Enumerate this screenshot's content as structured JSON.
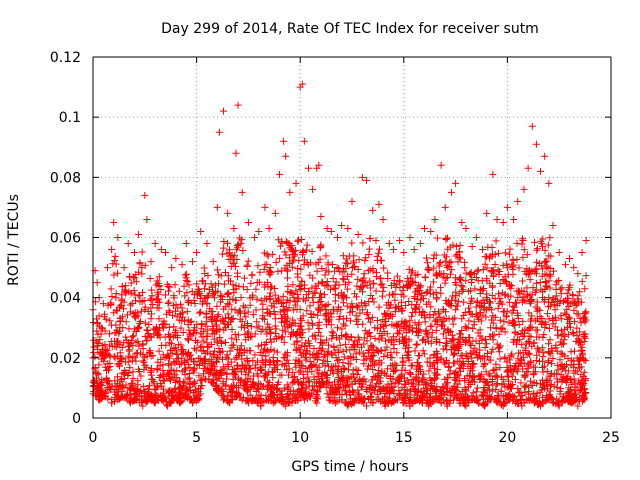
{
  "chart_data": {
    "type": "scatter",
    "title": "Day 299 of 2014, Rate Of TEC Index for receiver sutm",
    "xlabel": "GPS time / hours",
    "ylabel": "ROTI / TECUs",
    "xlim": [
      0,
      25
    ],
    "ylim": [
      0,
      0.12
    ],
    "x_ticks": [
      0,
      5,
      10,
      15,
      20,
      25
    ],
    "x_tick_labels": [
      "0",
      "5",
      "10",
      "15",
      "20",
      "25"
    ],
    "y_ticks": [
      0,
      0.02,
      0.04,
      0.06,
      0.08,
      0.1,
      0.12
    ],
    "y_tick_labels": [
      "0",
      "0.02",
      "0.04",
      "0.06",
      "0.08",
      "0.1",
      "0.12"
    ],
    "grid": true,
    "marker": "plus",
    "color": "#ff0000",
    "series": [
      {
        "x": [
          0.0,
          0.1,
          0.2,
          0.3,
          0.5,
          0.7,
          0.9,
          1.0,
          1.2,
          1.5,
          1.7,
          2.0,
          2.2,
          2.5,
          2.6,
          2.8,
          3.0,
          3.3,
          3.5,
          3.8,
          4.0,
          4.3,
          4.5,
          4.8,
          5.0,
          5.2,
          5.5,
          5.8,
          6.0,
          6.1,
          6.3,
          6.5,
          6.8,
          6.9,
          7.0,
          7.2,
          7.5,
          7.8,
          8.0,
          8.3,
          8.5,
          8.8,
          9.0,
          9.2,
          9.3,
          9.5,
          9.8,
          10.0,
          10.1,
          10.2,
          10.4,
          10.6,
          10.8,
          10.9,
          11.0,
          11.3,
          11.5,
          11.8,
          12.0,
          12.3,
          12.5,
          12.8,
          13.0,
          13.2,
          13.5,
          13.8,
          14.0,
          14.3,
          14.5,
          14.8,
          15.0,
          15.3,
          15.5,
          15.8,
          16.0,
          16.3,
          16.5,
          16.8,
          17.0,
          17.3,
          17.5,
          17.8,
          18.0,
          18.3,
          18.5,
          18.8,
          19.0,
          19.3,
          19.5,
          19.8,
          20.0,
          20.3,
          20.5,
          20.8,
          21.0,
          21.2,
          21.4,
          21.6,
          21.8,
          22.0,
          22.2,
          22.5,
          22.8,
          23.0,
          23.2,
          23.4,
          23.6,
          23.8
        ],
        "y": [
          0.036,
          0.049,
          0.045,
          0.04,
          0.038,
          0.05,
          0.056,
          0.065,
          0.06,
          0.05,
          0.058,
          0.055,
          0.061,
          0.074,
          0.066,
          0.052,
          0.058,
          0.056,
          0.055,
          0.05,
          0.053,
          0.051,
          0.058,
          0.052,
          0.055,
          0.062,
          0.058,
          0.052,
          0.07,
          0.095,
          0.102,
          0.068,
          0.063,
          0.088,
          0.104,
          0.075,
          0.065,
          0.06,
          0.062,
          0.07,
          0.063,
          0.068,
          0.081,
          0.092,
          0.087,
          0.075,
          0.078,
          0.11,
          0.111,
          0.092,
          0.083,
          0.076,
          0.083,
          0.084,
          0.067,
          0.063,
          0.062,
          0.06,
          0.064,
          0.063,
          0.072,
          0.061,
          0.08,
          0.079,
          0.069,
          0.071,
          0.066,
          0.058,
          0.056,
          0.059,
          0.055,
          0.06,
          0.056,
          0.058,
          0.063,
          0.062,
          0.066,
          0.084,
          0.07,
          0.075,
          0.078,
          0.065,
          0.063,
          0.057,
          0.06,
          0.056,
          0.068,
          0.081,
          0.066,
          0.065,
          0.07,
          0.066,
          0.072,
          0.076,
          0.083,
          0.097,
          0.091,
          0.082,
          0.087,
          0.078,
          0.064,
          0.055,
          0.051,
          0.053,
          0.05,
          0.048,
          0.055,
          0.059
        ]
      },
      {
        "x": [
          0.0,
          0.2,
          0.4,
          0.6,
          0.8,
          1.0,
          1.3,
          1.6,
          1.9,
          2.2,
          2.5,
          2.8,
          3.1,
          3.4,
          3.7,
          4.0,
          4.3,
          4.6,
          4.9,
          5.2,
          5.5,
          5.8,
          6.1,
          6.4,
          6.7,
          7.0,
          7.3,
          7.6,
          7.9,
          8.2,
          8.5,
          8.8,
          9.1,
          9.4,
          9.7,
          10.0,
          10.3,
          10.6,
          10.9,
          11.2,
          11.5,
          11.8,
          12.1,
          12.4,
          12.7,
          13.0,
          13.3,
          13.6,
          13.9,
          14.2,
          14.5,
          14.8,
          15.1,
          15.4,
          15.7,
          16.0,
          16.3,
          16.6,
          16.9,
          17.2,
          17.5,
          17.8,
          18.1,
          18.4,
          18.7,
          19.0,
          19.3,
          19.6,
          19.9,
          20.2,
          20.5,
          20.8,
          21.1,
          21.4,
          21.7,
          22.0,
          22.3,
          22.6,
          22.9,
          23.2,
          23.5,
          23.7
        ],
        "y": [
          0.02,
          0.025,
          0.03,
          0.022,
          0.028,
          0.035,
          0.03,
          0.032,
          0.027,
          0.03,
          0.036,
          0.033,
          0.028,
          0.03,
          0.025,
          0.029,
          0.022,
          0.026,
          0.03,
          0.028,
          0.025,
          0.018,
          0.022,
          0.03,
          0.033,
          0.035,
          0.03,
          0.027,
          0.032,
          0.034,
          0.03,
          0.033,
          0.038,
          0.042,
          0.04,
          0.044,
          0.041,
          0.04,
          0.036,
          0.034,
          0.031,
          0.03,
          0.033,
          0.035,
          0.034,
          0.036,
          0.033,
          0.03,
          0.031,
          0.028,
          0.027,
          0.029,
          0.032,
          0.03,
          0.031,
          0.034,
          0.037,
          0.04,
          0.036,
          0.038,
          0.036,
          0.033,
          0.03,
          0.032,
          0.035,
          0.036,
          0.034,
          0.038,
          0.041,
          0.044,
          0.04,
          0.042,
          0.046,
          0.048,
          0.042,
          0.04,
          0.036,
          0.033,
          0.03,
          0.028,
          0.025,
          0.027
        ]
      },
      {
        "x": [
          0.0,
          0.3,
          0.6,
          0.9,
          1.2,
          1.5,
          1.8,
          2.1,
          2.4,
          2.7,
          3.0,
          3.3,
          3.6,
          3.9,
          4.2,
          4.5,
          4.8,
          5.1,
          5.4,
          5.7,
          6.0,
          6.3,
          6.6,
          6.9,
          7.2,
          7.5,
          7.8,
          8.1,
          8.4,
          8.7,
          9.0,
          9.3,
          9.6,
          9.9,
          10.2,
          10.5,
          10.8,
          11.1,
          11.4,
          11.7,
          12.0,
          12.3,
          12.6,
          12.9,
          13.2,
          13.5,
          13.8,
          14.1,
          14.4,
          14.7,
          15.0,
          15.3,
          15.6,
          15.9,
          16.2,
          16.5,
          16.8,
          17.1,
          17.4,
          17.7,
          18.0,
          18.3,
          18.6,
          18.9,
          19.2,
          19.5,
          19.8,
          20.1,
          20.4,
          20.7,
          21.0,
          21.3,
          21.6,
          21.9,
          22.2,
          22.5,
          22.8,
          23.1,
          23.4,
          23.7
        ],
        "y": [
          0.008,
          0.006,
          0.007,
          0.005,
          0.006,
          0.007,
          0.005,
          0.006,
          0.004,
          0.006,
          0.005,
          0.006,
          0.004,
          0.006,
          0.005,
          0.007,
          0.005,
          0.006,
          0.013,
          0.012,
          0.009,
          0.006,
          0.005,
          0.007,
          0.006,
          0.005,
          0.006,
          0.004,
          0.006,
          0.005,
          0.006,
          0.004,
          0.005,
          0.006,
          0.006,
          0.007,
          0.005,
          0.012,
          0.006,
          0.005,
          0.006,
          0.004,
          0.005,
          0.006,
          0.004,
          0.005,
          0.006,
          0.004,
          0.005,
          0.006,
          0.005,
          0.004,
          0.006,
          0.005,
          0.004,
          0.006,
          0.005,
          0.004,
          0.006,
          0.005,
          0.004,
          0.006,
          0.005,
          0.004,
          0.006,
          0.005,
          0.004,
          0.006,
          0.005,
          0.004,
          0.006,
          0.005,
          0.004,
          0.006,
          0.005,
          0.004,
          0.006,
          0.005,
          0.004,
          0.006
        ]
      }
    ]
  }
}
